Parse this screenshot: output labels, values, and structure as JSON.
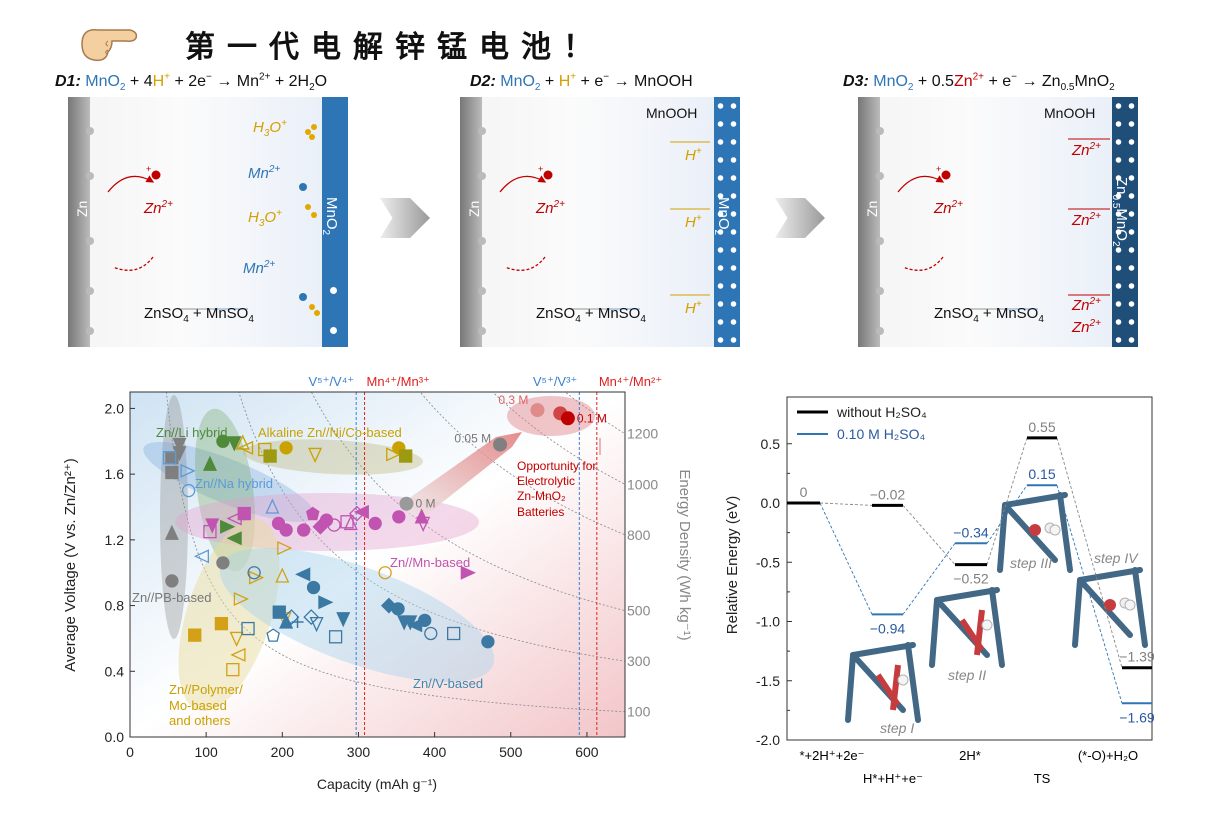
{
  "header": {
    "title": "第一代电解锌锰电池！",
    "hand_icon": "pointing-hand-icon"
  },
  "equations": {
    "d1": [
      [
        "D1:",
        "lbl"
      ],
      [
        " "
      ],
      [
        "MnO",
        "b"
      ],
      [
        "2",
        "b sub"
      ],
      [
        " + 4"
      ],
      [
        "H",
        "g"
      ],
      [
        "+",
        "g sup"
      ],
      [
        " + 2e"
      ],
      [
        "−",
        "sup"
      ],
      [
        " → Mn"
      ],
      [
        "2+",
        "sup"
      ],
      [
        " + 2H"
      ],
      [
        "2",
        "sub"
      ],
      [
        "O"
      ]
    ],
    "d2": [
      [
        "D2:",
        "lbl"
      ],
      [
        " "
      ],
      [
        "MnO",
        "b"
      ],
      [
        "2",
        "b sub"
      ],
      [
        " + "
      ],
      [
        "H",
        "g"
      ],
      [
        "+",
        "g sup"
      ],
      [
        " + e"
      ],
      [
        "−",
        "sup"
      ],
      [
        " → MnOOH"
      ]
    ],
    "d3": [
      [
        "D3:",
        "lbl"
      ],
      [
        " "
      ],
      [
        "MnO",
        "b"
      ],
      [
        "2",
        "b sub"
      ],
      [
        " + 0.5"
      ],
      [
        "Zn",
        "r"
      ],
      [
        "2+",
        "r sup"
      ],
      [
        " + e"
      ],
      [
        "−",
        "sup"
      ],
      [
        " → Zn"
      ],
      [
        "0.5",
        "sub"
      ],
      [
        "MnO"
      ],
      [
        "2",
        "sub"
      ]
    ]
  },
  "panels": {
    "zn_label": "Zn",
    "zn_ion": [
      [
        "Zn",
        "r"
      ],
      [
        "2+",
        "r sup"
      ]
    ],
    "ion_dot": "+",
    "electrolyte": [
      [
        "ZnSO"
      ],
      [
        "4",
        "sub"
      ],
      [
        " + MnSO"
      ],
      [
        "4",
        "sub"
      ]
    ],
    "d1": {
      "cathode": [
        [
          "MnO"
        ],
        [
          "2",
          "sub"
        ]
      ],
      "h3o": [
        [
          "H",
          "g"
        ],
        [
          "3",
          "g sub"
        ],
        [
          "O",
          "g"
        ],
        [
          "+",
          "g sup"
        ]
      ],
      "mn": [
        [
          "Mn",
          "b"
        ],
        [
          "2+",
          "b sup"
        ]
      ]
    },
    "d2": {
      "cathode": [
        [
          "MnO"
        ],
        [
          "2",
          "sub"
        ]
      ],
      "product": "MnOOH",
      "h": [
        [
          "H",
          "g"
        ],
        [
          "+",
          "g sup"
        ]
      ]
    },
    "d3": {
      "cathode": [
        [
          "Zn"
        ],
        [
          "0.5",
          "sub"
        ],
        [
          "MnO"
        ],
        [
          "2",
          "sub"
        ]
      ],
      "product": "MnOOH",
      "zn": [
        [
          "Zn",
          "r"
        ],
        [
          "2+",
          "r sup"
        ]
      ]
    }
  },
  "chart_data": [
    {
      "type": "scatter",
      "xlabel": "Capacity (mAh g⁻¹)",
      "ylabel": "Average Voltage (V vs. Zn/Zn²⁺)",
      "y2label": "Energy Density (Wh kg⁻¹)",
      "xlim": [
        0,
        650
      ],
      "ylim": [
        0,
        2.1
      ],
      "xticks": [
        0,
        100,
        200,
        300,
        400,
        500,
        600
      ],
      "yticks": [
        "0.0",
        "0.4",
        "0.8",
        "1.2",
        "1.6",
        "2.0"
      ],
      "energy_contours": [
        100,
        300,
        500,
        800,
        1000,
        1200
      ],
      "redox_lines": [
        {
          "label": "V⁵⁺/V⁴⁺",
          "x": 297,
          "color": "#3a7fd0"
        },
        {
          "label": "Mn⁴⁺/Mn³⁺",
          "x": 308,
          "color": "#e02020"
        },
        {
          "label": "V⁵⁺/V³⁺",
          "x": 590,
          "color": "#3a7fd0"
        },
        {
          "label": "Mn⁴⁺/Mn²⁺",
          "x": 613,
          "color": "#e02020"
        }
      ],
      "group_labels": {
        "pb": "Zn//PB-based",
        "li": "Zn//Li hybrid",
        "na": "Zn//Na hybrid",
        "alk": "Alkaline Zn//Ni/Co-based",
        "mn": "Zn//Mn-based",
        "poly": [
          "Zn//Polymer/",
          "Mo-based",
          "and others"
        ],
        "v": "Zn//V-based"
      },
      "colors": {
        "pb": "#7f7f7f",
        "li": "#4e8a3a",
        "na": "#5b9bd5",
        "alk": "#c9a100",
        "olive": "#9c9a10",
        "mn": "#c054b0",
        "poly": "#d4a017",
        "v": "#3b79a3"
      },
      "series": [
        {
          "name": "pb",
          "points": [
            [
              55,
              1.7,
              "sq",
              1
            ],
            [
              55,
              1.61,
              "sq",
              1
            ],
            [
              65,
              1.78,
              "td",
              1
            ],
            [
              65,
              1.73,
              "td",
              1
            ],
            [
              55,
              1.24,
              "tu",
              1
            ],
            [
              55,
              0.95,
              "c",
              1
            ],
            [
              122,
              1.06,
              "c",
              1
            ]
          ]
        },
        {
          "name": "na",
          "points": [
            [
              52,
              1.7,
              "sq",
              0
            ],
            [
              75,
              1.62,
              "tr",
              0
            ],
            [
              77,
              1.5,
              "c",
              0
            ],
            [
              187,
              1.4,
              "tu",
              0
            ],
            [
              95,
              1.1,
              "tl",
              0
            ]
          ]
        },
        {
          "name": "li",
          "points": [
            [
              105,
              1.66,
              "tu",
              1
            ],
            [
              122,
              1.8,
              "c",
              1
            ],
            [
              137,
              1.79,
              "td",
              1
            ],
            [
              127,
              1.28,
              "tr",
              1
            ],
            [
              138,
              1.21,
              "tl",
              1
            ]
          ]
        },
        {
          "name": "alk",
          "points": [
            [
              148,
              1.79,
              "tu",
              0
            ],
            [
              153,
              1.76,
              "tl",
              0
            ],
            [
              177,
              1.75,
              "sq",
              0
            ],
            [
              205,
              1.76,
              "c",
              1
            ],
            [
              243,
              1.72,
              "td",
              0
            ],
            [
              345,
              1.72,
              "tr",
              0
            ],
            [
              353,
              1.76,
              "c",
              1
            ]
          ]
        },
        {
          "name": "olive",
          "points": [
            [
              184,
              1.71,
              "sq",
              1
            ],
            [
              362,
              1.71,
              "sq",
              1
            ]
          ]
        },
        {
          "name": "mn",
          "points": [
            [
              108,
              1.29,
              "td",
              1
            ],
            [
              105,
              1.25,
              "sq",
              0
            ],
            [
              138,
              1.33,
              "tl",
              0
            ],
            [
              150,
              1.36,
              "sq",
              1
            ],
            [
              195,
              1.3,
              "c",
              1
            ],
            [
              205,
              1.26,
              "c",
              1
            ],
            [
              240,
              1.36,
              "p",
              1
            ],
            [
              250,
              1.28,
              "d",
              1
            ],
            [
              258,
              1.32,
              "c",
              1
            ],
            [
              268,
              1.29,
              "c",
              0
            ],
            [
              228,
              1.26,
              "c",
              1
            ],
            [
              285,
              1.31,
              "sq",
              0
            ],
            [
              290,
              1.3,
              "tu",
              0
            ],
            [
              298,
              1.36,
              "d",
              0
            ],
            [
              305,
              1.37,
              "tl",
              1
            ],
            [
              322,
              1.3,
              "c",
              1
            ],
            [
              353,
              1.34,
              "c",
              1
            ],
            [
              383,
              1.34,
              "tu",
              1
            ],
            [
              385,
              1.3,
              "td",
              0
            ],
            [
              443,
              1.0,
              "tr",
              1
            ]
          ]
        },
        {
          "name": "poly",
          "points": [
            [
              202,
              1.15,
              "tr",
              0
            ],
            [
              165,
              0.97,
              "tr",
              0
            ],
            [
              145,
              0.84,
              "tr",
              0
            ],
            [
              200,
              0.98,
              "tu",
              0
            ],
            [
              85,
              0.62,
              "sq",
              1
            ],
            [
              120,
              0.69,
              "sq",
              1
            ],
            [
              140,
              0.6,
              "td",
              0
            ],
            [
              143,
              0.5,
              "tl",
              0
            ],
            [
              135,
              0.41,
              "sq",
              0
            ],
            [
              203,
              0.72,
              "td",
              0
            ],
            [
              335,
              1.0,
              "c",
              0
            ]
          ]
        },
        {
          "name": "v",
          "points": [
            [
              163,
              1.0,
              "c",
              0
            ],
            [
              228,
              0.99,
              "tl",
              1
            ],
            [
              241,
              0.91,
              "c",
              1
            ],
            [
              256,
              0.82,
              "tr",
              1
            ],
            [
              196,
              0.76,
              "sq",
              1
            ],
            [
              212,
              0.73,
              "d",
              0
            ],
            [
              205,
              0.7,
              "tu",
              1
            ],
            [
              220,
              0.7,
              "x",
              0
            ],
            [
              238,
              0.73,
              "d",
              0
            ],
            [
              245,
              0.69,
              "td",
              0
            ],
            [
              280,
              0.72,
              "td",
              1
            ],
            [
              155,
              0.66,
              "sq",
              0
            ],
            [
              270,
              0.61,
              "sq",
              0
            ],
            [
              188,
              0.62,
              "p",
              0
            ],
            [
              340,
              0.8,
              "d",
              1
            ],
            [
              352,
              0.78,
              "c",
              1
            ],
            [
              360,
              0.7,
              "td",
              1
            ],
            [
              368,
              0.7,
              "td",
              1
            ],
            [
              375,
              0.68,
              "tl",
              1
            ],
            [
              387,
              0.71,
              "c",
              1
            ],
            [
              395,
              0.63,
              "c",
              0
            ],
            [
              425,
              0.63,
              "sq",
              0
            ],
            [
              470,
              0.58,
              "c",
              1
            ]
          ]
        }
      ],
      "electrolytic_points": [
        {
          "label": "0 M",
          "x": 363,
          "y": 1.42,
          "color": "#9a9a9a"
        },
        {
          "label": "0.05 M",
          "x": 486,
          "y": 1.78,
          "color": "#808080"
        },
        {
          "label": "0.3 M",
          "x": 535,
          "y": 1.99,
          "color": "#e08a8a"
        },
        {
          "label": "",
          "x": 565,
          "y": 1.97,
          "color": "#d04545"
        },
        {
          "label": "0.1 M",
          "x": 575,
          "y": 1.94,
          "color": "#c00000"
        }
      ],
      "annotation": [
        "Opportunity for",
        "Electrolytic",
        "Zn-MnO₂",
        "Batteries"
      ]
    },
    {
      "type": "line",
      "ylabel": "Relative Energy (eV)",
      "ylim": [
        -2.0,
        0.85
      ],
      "yticks": [
        "0.5",
        "0.0",
        "-0.5",
        "-1.0",
        "-1.5",
        "-2.0"
      ],
      "states_top": [
        "*+2H⁺+2e⁻",
        "2H*",
        "(*-O)+H₂O"
      ],
      "states_bottom": [
        "H*+H⁺+e⁻",
        "TS"
      ],
      "legend": [
        {
          "name": "without H₂SO₄",
          "color": "#000000"
        },
        {
          "name": "0.10 M H₂SO₄",
          "color": "#2e75b6"
        }
      ],
      "series": [
        {
          "name": "without H₂SO₄",
          "values": [
            0,
            -0.02,
            -0.52,
            0.55,
            -1.39
          ],
          "labels": [
            "0",
            "−0.02",
            "−0.52",
            "0.55",
            "−1.39"
          ]
        },
        {
          "name": "0.10 M H₂SO₄",
          "values": [
            0,
            -0.94,
            -0.34,
            0.15,
            -1.69
          ],
          "labels": [
            "",
            "−0.94",
            "−0.34",
            "0.15",
            "−1.69"
          ]
        }
      ],
      "step_labels": [
        "step I",
        "step II",
        "step III",
        "step IV"
      ]
    }
  ]
}
